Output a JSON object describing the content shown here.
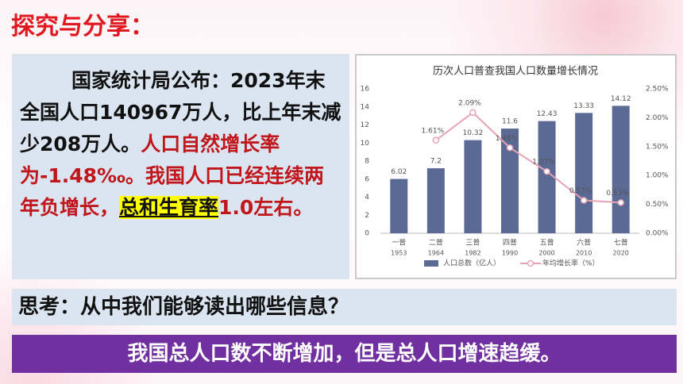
{
  "header": {
    "title": "探究与分享："
  },
  "intro": {
    "lead": "国家统计局公布：2023年末全国人口140967万人，比上年末减少208万人。",
    "red": "人口自然增长率为-1.48‰。我国人口已经连续两年负增长，",
    "highlight": "总和生育率",
    "tail": "1.0左右。"
  },
  "question": "思考：从中我们能够读出哪些信息？",
  "answer": "我国总人口数不断增加，但是总人口增速趋缓。",
  "chart_data": {
    "type": "bar",
    "title": "历次人口普查我国人口数量增长情况",
    "categories": [
      "一普",
      "二普",
      "三普",
      "四普",
      "五普",
      "六普",
      "七普"
    ],
    "years": [
      "1953",
      "1964",
      "1982",
      "1990",
      "2000",
      "2010",
      "2020"
    ],
    "series": [
      {
        "name": "人口总数（亿人）",
        "type": "bar",
        "color": "#5b6a94",
        "values": [
          6.02,
          7.2,
          10.32,
          11.6,
          12.43,
          13.33,
          14.12
        ]
      },
      {
        "name": "年均增长率（%）",
        "type": "line",
        "axis": "y2",
        "color": "#e6a3b4",
        "values": [
          null,
          1.61,
          2.09,
          1.48,
          1.07,
          0.57,
          0.53
        ],
        "value_labels": [
          null,
          "1.61%",
          "2.09%",
          "1.48%",
          "1.07%",
          "0.57%",
          "0.53%"
        ]
      }
    ],
    "ylim": [
      0,
      16
    ],
    "yticks": [
      0,
      2,
      4,
      6,
      8,
      10,
      12,
      14,
      16
    ],
    "y2lim": [
      0,
      2.5
    ],
    "y2ticks": [
      {
        "value": 0,
        "label": "0.00%"
      },
      {
        "value": 0.5,
        "label": "0.50%"
      },
      {
        "value": 1,
        "label": "1.00%"
      },
      {
        "value": 1.5,
        "label": "1.50%"
      },
      {
        "value": 2,
        "label": "2.00%"
      },
      {
        "value": 2.5,
        "label": "2.50%"
      }
    ],
    "legend": "bottom"
  }
}
